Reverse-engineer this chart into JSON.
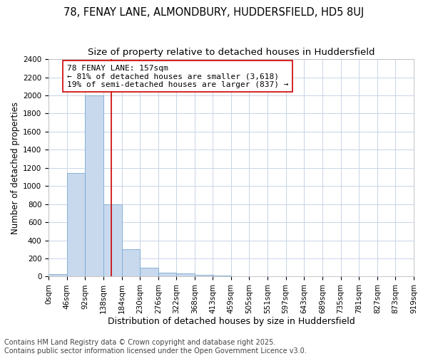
{
  "title1": "78, FENAY LANE, ALMONDBURY, HUDDERSFIELD, HD5 8UJ",
  "title2": "Size of property relative to detached houses in Huddersfield",
  "xlabel": "Distribution of detached houses by size in Huddersfield",
  "ylabel": "Number of detached properties",
  "bin_edges": [
    0,
    46,
    92,
    138,
    184,
    230,
    276,
    322,
    368,
    413,
    459,
    505,
    551,
    597,
    643,
    689,
    735,
    781,
    827,
    873,
    919
  ],
  "bar_heights": [
    30,
    1140,
    2000,
    800,
    300,
    100,
    45,
    35,
    20,
    15,
    5,
    0,
    0,
    0,
    0,
    0,
    0,
    0,
    0,
    0
  ],
  "bar_color": "#c8d8ed",
  "bar_edge_color": "#7aaad0",
  "vline_x": 157,
  "vline_color": "#cc0000",
  "annotation_text": "78 FENAY LANE: 157sqm\n← 81% of detached houses are smaller (3,618)\n19% of semi-detached houses are larger (837) →",
  "ylim": [
    0,
    2400
  ],
  "yticks": [
    0,
    200,
    400,
    600,
    800,
    1000,
    1200,
    1400,
    1600,
    1800,
    2000,
    2200,
    2400
  ],
  "plot_bg_color": "#ffffff",
  "fig_bg_color": "#ffffff",
  "grid_color": "#c8d4e8",
  "footer_line1": "Contains HM Land Registry data © Crown copyright and database right 2025.",
  "footer_line2": "Contains public sector information licensed under the Open Government Licence v3.0.",
  "title1_fontsize": 10.5,
  "title2_fontsize": 9.5,
  "xlabel_fontsize": 9,
  "ylabel_fontsize": 8.5,
  "tick_fontsize": 7.5,
  "annotation_fontsize": 8,
  "footer_fontsize": 7
}
